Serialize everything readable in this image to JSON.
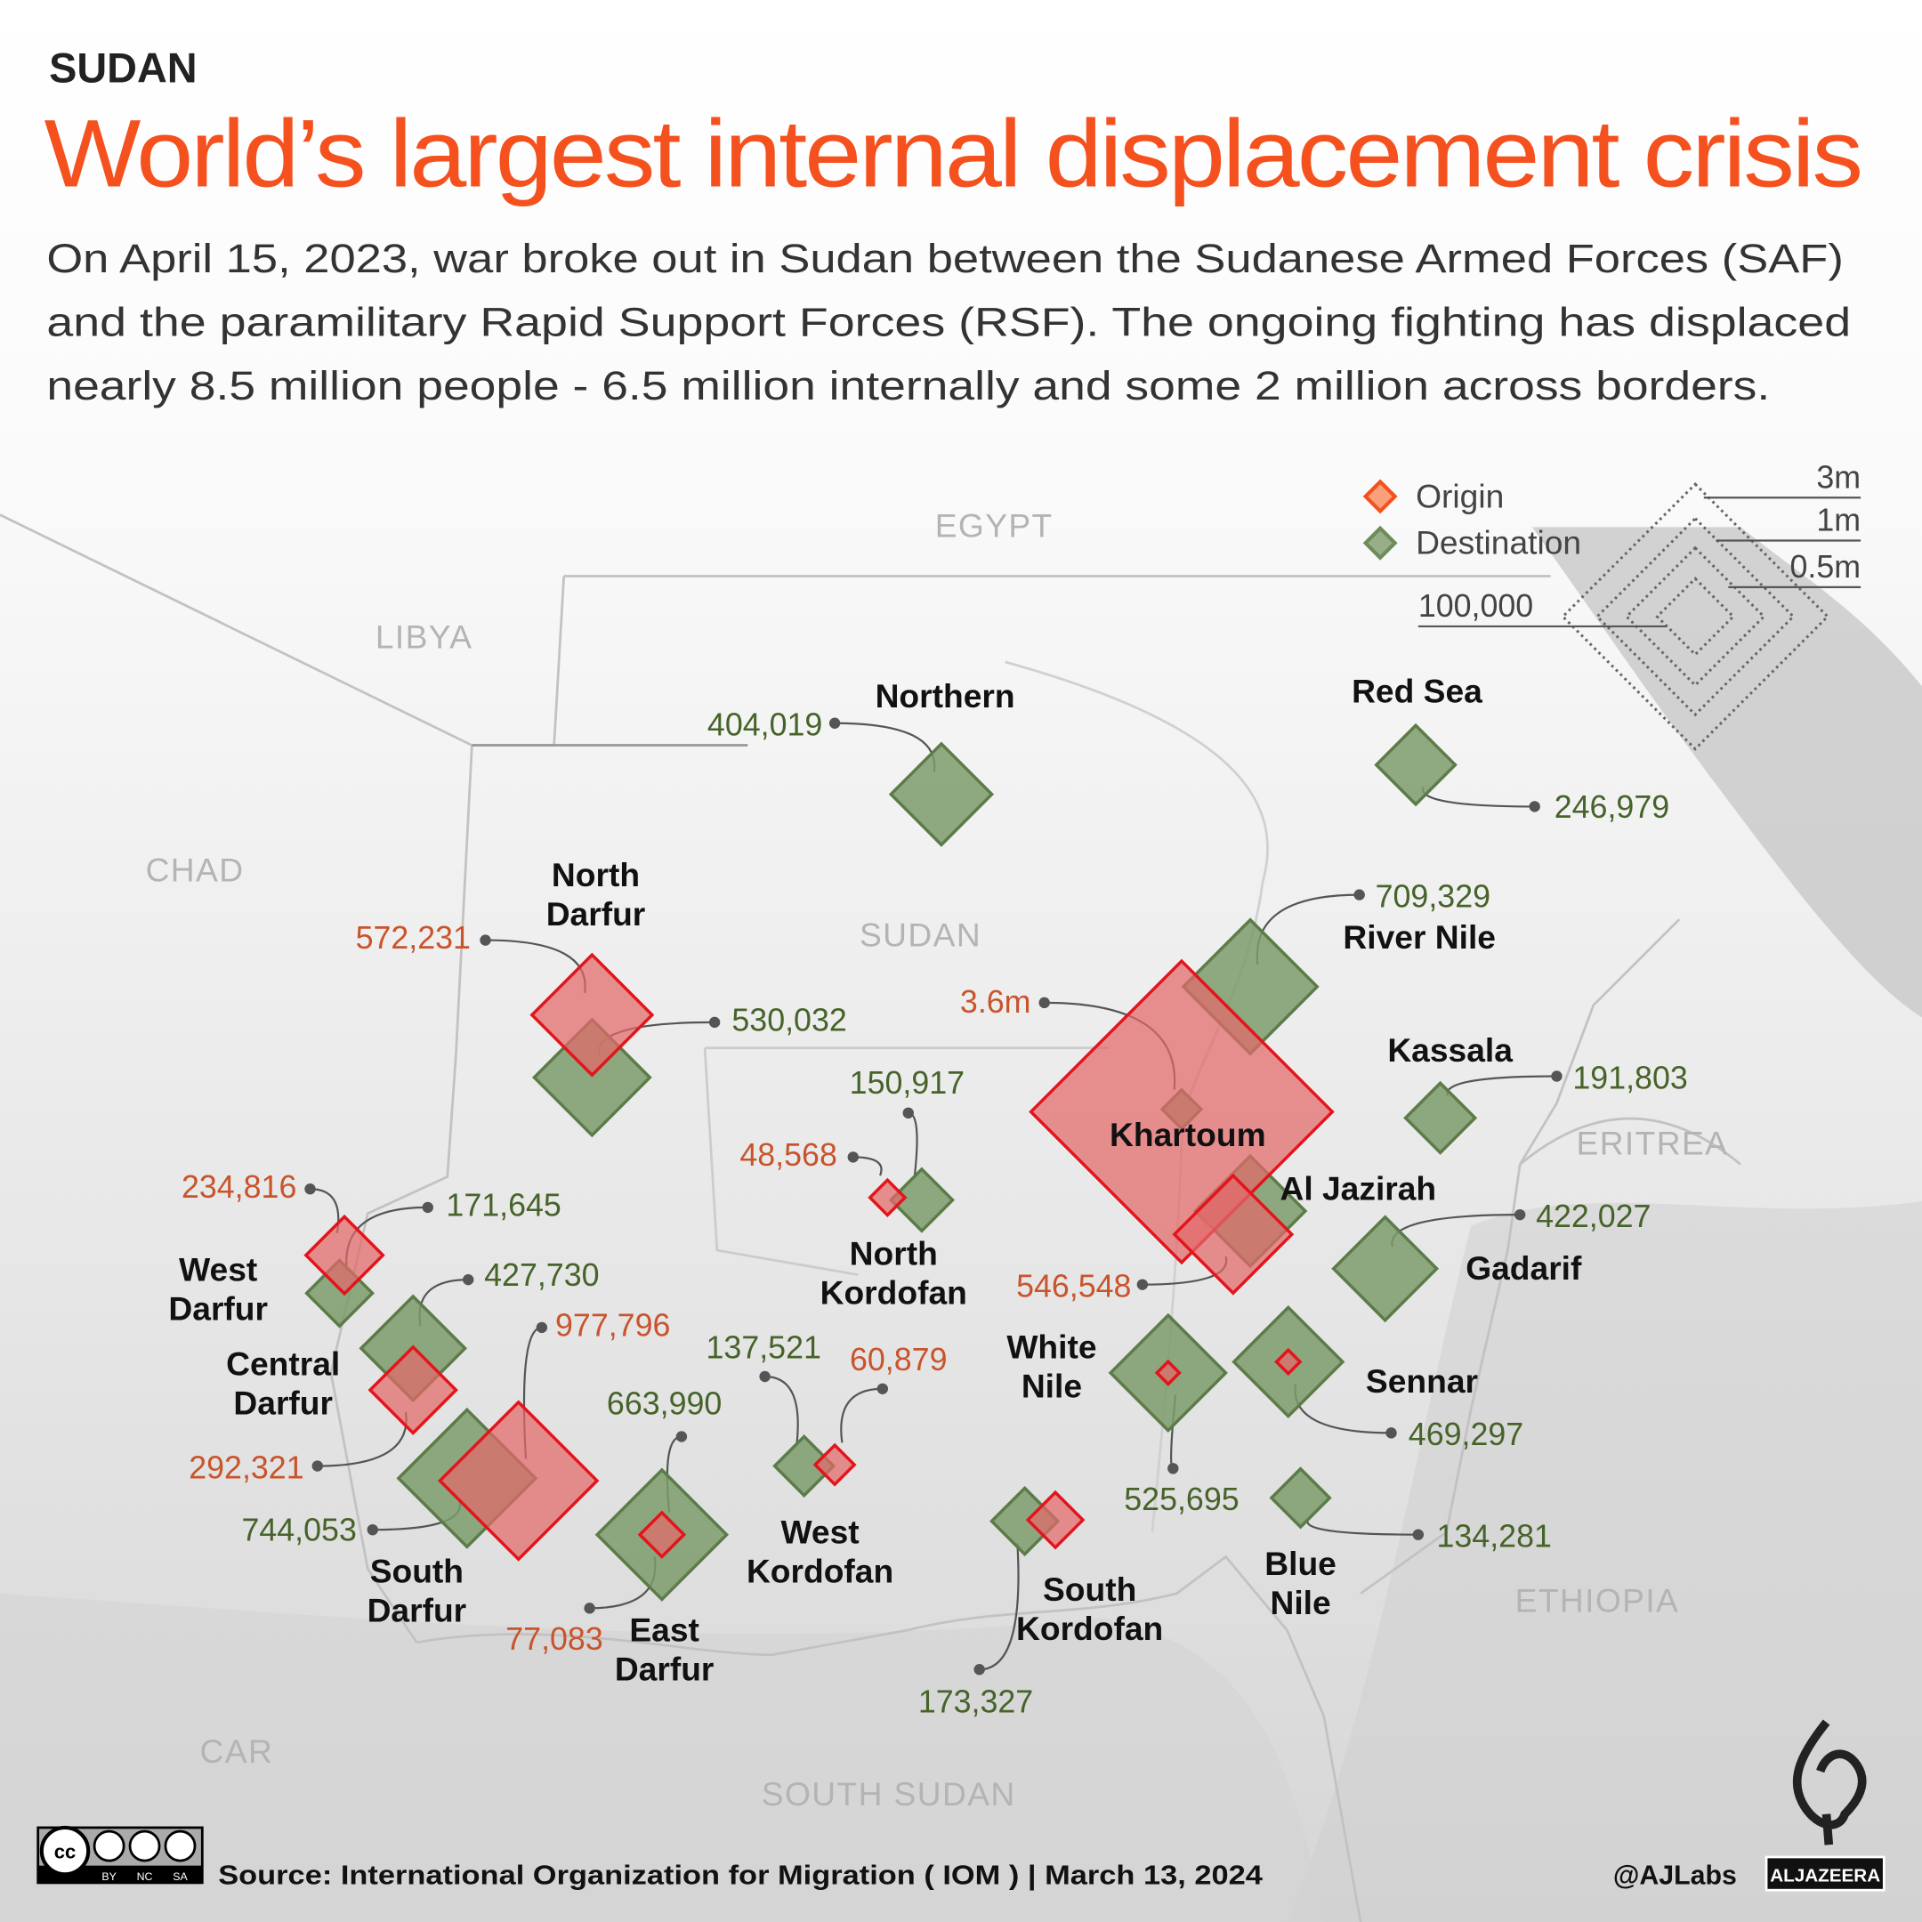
{
  "header": {
    "kicker": "SUDAN",
    "title": "World’s largest internal displacement crisis",
    "intro_lines": [
      "On April 15, 2023, war broke out in Sudan between the Sudanese Armed Forces (SAF)",
      "and the paramilitary Rapid Support Forces (RSF). The ongoing fighting has displaced",
      "nearly 8.5 million people - 6.5 million internally and some 2 million across borders."
    ]
  },
  "colors": {
    "title": "#f4511e",
    "origin_fill": "#e36a6a",
    "origin_stroke": "#e3141b",
    "destination_fill": "#7d9b6c",
    "destination_stroke": "#5b7c48",
    "origin_text": "#c9542c",
    "destination_text": "#46632a"
  },
  "legend": {
    "origin_label": "Origin",
    "destination_label": "Destination",
    "scale_labels": [
      "3m",
      "1m",
      "0.5m",
      "100,000"
    ],
    "scale_values": [
      3000000,
      1000000,
      500000,
      100000
    ]
  },
  "countries": [
    "EGYPT",
    "LIBYA",
    "CHAD",
    "SUDAN",
    "ERITREA",
    "ETHIOPIA",
    "CAR",
    "SOUTH SUDAN"
  ],
  "regions": [
    {
      "id": "northern",
      "name_lines": [
        "Northern"
      ],
      "destination": 404019,
      "destination_label": "404,019"
    },
    {
      "id": "red-sea",
      "name_lines": [
        "Red Sea"
      ],
      "destination": 246979,
      "destination_label": "246,979"
    },
    {
      "id": "river-nile",
      "name_lines": [
        "River Nile"
      ],
      "destination": 709329,
      "destination_label": "709,329"
    },
    {
      "id": "khartoum",
      "name_lines": [
        "Khartoum"
      ],
      "origin": 3600000,
      "origin_label": "3.6m",
      "destination": 60000
    },
    {
      "id": "kassala",
      "name_lines": [
        "Kassala"
      ],
      "destination": 191803,
      "destination_label": "191,803"
    },
    {
      "id": "al-jazirah",
      "name_lines": [
        "Al Jazirah"
      ],
      "origin": 546548,
      "origin_label": "546,548",
      "destination": 480000
    },
    {
      "id": "gadarif",
      "name_lines": [
        "Gadarif"
      ],
      "destination": 422027,
      "destination_label": "422,027"
    },
    {
      "id": "sennar",
      "name_lines": [
        "Sennar"
      ],
      "destination": 469297,
      "destination_label": "469,297",
      "origin": 22000
    },
    {
      "id": "white-nile",
      "name_lines": [
        "White",
        "Nile"
      ],
      "destination": 525695,
      "destination_label": "525,695",
      "origin": 20000
    },
    {
      "id": "blue-nile",
      "name_lines": [
        "Blue",
        "Nile"
      ],
      "destination": 134281,
      "destination_label": "134,281"
    },
    {
      "id": "south-kordofan",
      "name_lines": [
        "South",
        "Kordofan"
      ],
      "destination": 173327,
      "destination_label": "173,327",
      "origin": 120000
    },
    {
      "id": "west-kordofan",
      "name_lines": [
        "West",
        "Kordofan"
      ],
      "destination": 137521,
      "destination_label": "137,521",
      "origin": 60879,
      "origin_label": "60,879"
    },
    {
      "id": "north-kordofan",
      "name_lines": [
        "North",
        "Kordofan"
      ],
      "destination": 150917,
      "destination_label": "150,917",
      "origin": 48568,
      "origin_label": "48,568"
    },
    {
      "id": "north-darfur",
      "name_lines": [
        "North",
        "Darfur"
      ],
      "origin": 572231,
      "origin_label": "572,231",
      "destination": 530032,
      "destination_label": "530,032"
    },
    {
      "id": "west-darfur",
      "name_lines": [
        "West",
        "Darfur"
      ],
      "origin": 234816,
      "origin_label": "234,816",
      "destination": 171645,
      "destination_label": "171,645"
    },
    {
      "id": "central-darfur",
      "name_lines": [
        "Central",
        "Darfur"
      ],
      "destination": 427730,
      "destination_label": "427,730",
      "origin": 292321,
      "origin_label": "292,321"
    },
    {
      "id": "south-darfur",
      "name_lines": [
        "South",
        "Darfur"
      ],
      "origin": 977796,
      "origin_label": "977,796",
      "destination": 744053,
      "destination_label": "744,053"
    },
    {
      "id": "east-darfur",
      "name_lines": [
        "East",
        "Darfur"
      ],
      "destination": 663990,
      "destination_label": "663,990",
      "origin": 77083,
      "origin_label": "77,083"
    }
  ],
  "footer": {
    "license_labels": [
      "BY",
      "NC",
      "SA"
    ],
    "source": "Source: International Organization for Migration ( IOM ) | March 13, 2024",
    "handle": "@AJLabs",
    "brand": "ALJAZEERA"
  }
}
